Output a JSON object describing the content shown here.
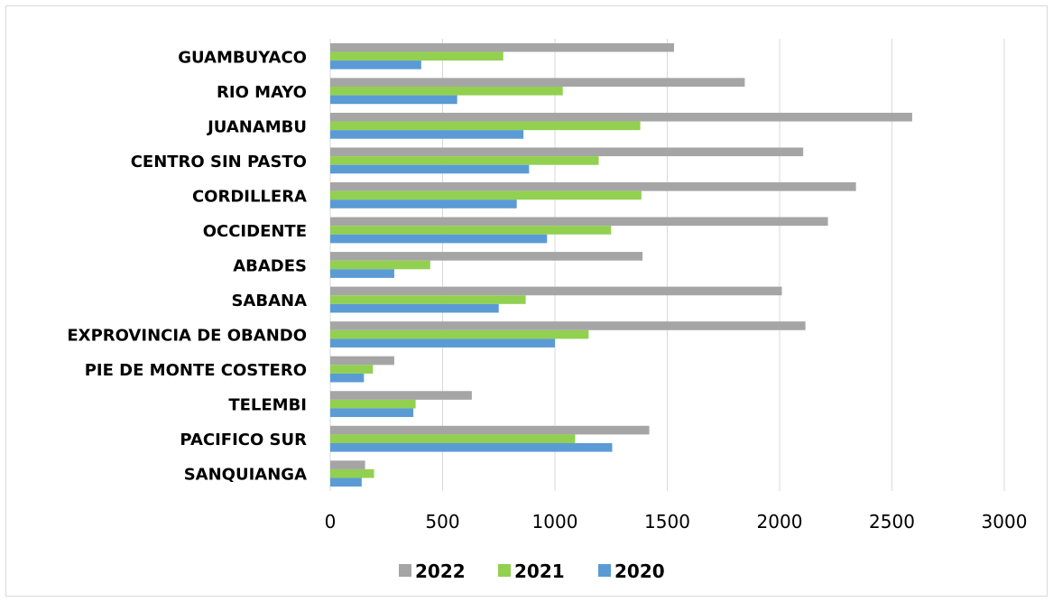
{
  "chart_data": {
    "type": "bar",
    "orientation": "horizontal",
    "categories": [
      "GUAMBUYACO",
      "RIO MAYO",
      "JUANAMBU",
      "CENTRO SIN PASTO",
      "CORDILLERA",
      "OCCIDENTE",
      "ABADES",
      "SABANA",
      "EXPROVINCIA DE OBANDO",
      "PIE DE MONTE COSTERO",
      "TELEMBI",
      "PACIFICO SUR",
      "SANQUIANGA"
    ],
    "series": [
      {
        "name": "2022",
        "color": "#a5a5a5",
        "values": [
          1530,
          1845,
          2590,
          2105,
          2340,
          2215,
          1390,
          2010,
          2115,
          285,
          630,
          1420,
          155
        ]
      },
      {
        "name": "2021",
        "color": "#92d050",
        "values": [
          770,
          1035,
          1380,
          1195,
          1385,
          1250,
          445,
          870,
          1150,
          190,
          380,
          1090,
          195
        ]
      },
      {
        "name": "2020",
        "color": "#5b9bd5",
        "values": [
          405,
          565,
          860,
          885,
          830,
          965,
          285,
          750,
          1000,
          150,
          370,
          1255,
          140
        ]
      }
    ],
    "xlim": [
      0,
      3000
    ],
    "xticks": [
      "0",
      "500",
      "1000",
      "1500",
      "2000",
      "2500",
      "3000"
    ],
    "grid": true,
    "legend_position": "bottom"
  },
  "legend": [
    {
      "name": "2022",
      "color": "#a5a5a5"
    },
    {
      "name": "2021",
      "color": "#92d050"
    },
    {
      "name": "2020",
      "color": "#5b9bd5"
    }
  ]
}
